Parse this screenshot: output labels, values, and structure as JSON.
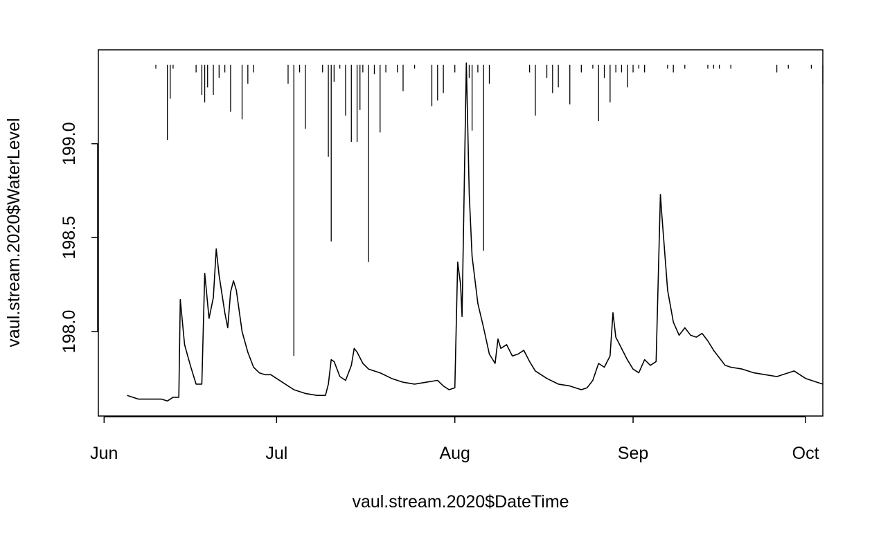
{
  "chart_data": {
    "type": "line",
    "title": "",
    "xlabel": "vaul.stream.2020$DateTime",
    "ylabel": "vaul.stream.2020$WaterLevel",
    "xlim": [
      "2020-05-31",
      "2020-10-04"
    ],
    "ylim": [
      197.55,
      199.5
    ],
    "x_ticks": [
      {
        "date": "2020-06-01",
        "label": "Jun"
      },
      {
        "date": "2020-07-01",
        "label": "Jul"
      },
      {
        "date": "2020-08-01",
        "label": "Aug"
      },
      {
        "date": "2020-09-01",
        "label": "Sep"
      },
      {
        "date": "2020-10-01",
        "label": "Oct"
      }
    ],
    "y_ticks": [
      {
        "value": 198.0,
        "label": "198.0"
      },
      {
        "value": 198.5,
        "label": "198.5"
      },
      {
        "value": 199.0,
        "label": "199.0"
      }
    ],
    "grid": false,
    "legend": "none",
    "line_color": "#000000",
    "series": [
      {
        "points": [
          [
            "2020-06-05",
            197.66
          ],
          [
            "2020-06-07",
            197.64
          ],
          [
            "2020-06-09",
            197.64
          ],
          [
            "2020-06-11",
            197.64
          ],
          [
            "2020-06-12",
            197.63
          ],
          [
            "2020-06-13",
            197.65
          ],
          [
            "2020-06-14",
            197.65
          ],
          [
            "2020-06-14 06:00",
            198.17
          ],
          [
            "2020-06-15",
            197.93
          ],
          [
            "2020-06-16",
            197.82
          ],
          [
            "2020-06-17",
            197.72
          ],
          [
            "2020-06-18",
            197.72
          ],
          [
            "2020-06-18 12:00",
            198.31
          ],
          [
            "2020-06-19 06:00",
            198.07
          ],
          [
            "2020-06-20",
            198.18
          ],
          [
            "2020-06-20 12:00",
            198.44
          ],
          [
            "2020-06-21",
            198.3
          ],
          [
            "2020-06-22",
            198.1
          ],
          [
            "2020-06-22 12:00",
            198.02
          ],
          [
            "2020-06-23",
            198.21
          ],
          [
            "2020-06-23 12:00",
            198.27
          ],
          [
            "2020-06-24",
            198.22
          ],
          [
            "2020-06-25",
            198.0
          ],
          [
            "2020-06-26",
            197.89
          ],
          [
            "2020-06-27",
            197.81
          ],
          [
            "2020-06-28",
            197.78
          ],
          [
            "2020-06-29",
            197.77
          ],
          [
            "2020-06-30",
            197.77
          ],
          [
            "2020-07-02",
            197.73
          ],
          [
            "2020-07-04",
            197.69
          ],
          [
            "2020-07-06",
            197.67
          ],
          [
            "2020-07-08",
            197.66
          ],
          [
            "2020-07-09 12:00",
            197.66
          ],
          [
            "2020-07-10",
            197.72
          ],
          [
            "2020-07-10 12:00",
            197.85
          ],
          [
            "2020-07-11",
            197.84
          ],
          [
            "2020-07-12",
            197.76
          ],
          [
            "2020-07-13",
            197.74
          ],
          [
            "2020-07-14",
            197.82
          ],
          [
            "2020-07-14 12:00",
            197.91
          ],
          [
            "2020-07-15",
            197.89
          ],
          [
            "2020-07-16",
            197.83
          ],
          [
            "2020-07-17",
            197.8
          ],
          [
            "2020-07-19",
            197.78
          ],
          [
            "2020-07-21",
            197.75
          ],
          [
            "2020-07-23",
            197.73
          ],
          [
            "2020-07-25",
            197.72
          ],
          [
            "2020-07-27",
            197.73
          ],
          [
            "2020-07-29",
            197.74
          ],
          [
            "2020-07-30",
            197.71
          ],
          [
            "2020-07-31",
            197.69
          ],
          [
            "2020-08-01",
            197.7
          ],
          [
            "2020-08-01 12:00",
            198.37
          ],
          [
            "2020-08-02",
            198.25
          ],
          [
            "2020-08-02 06:00",
            198.08
          ],
          [
            "2020-08-03",
            199.43
          ],
          [
            "2020-08-03 12:00",
            198.73
          ],
          [
            "2020-08-04",
            198.4
          ],
          [
            "2020-08-05",
            198.15
          ],
          [
            "2020-08-06",
            198.02
          ],
          [
            "2020-08-07",
            197.88
          ],
          [
            "2020-08-08",
            197.83
          ],
          [
            "2020-08-08 12:00",
            197.96
          ],
          [
            "2020-08-09",
            197.91
          ],
          [
            "2020-08-10",
            197.93
          ],
          [
            "2020-08-11",
            197.87
          ],
          [
            "2020-08-12",
            197.88
          ],
          [
            "2020-08-13",
            197.9
          ],
          [
            "2020-08-14",
            197.84
          ],
          [
            "2020-08-15",
            197.79
          ],
          [
            "2020-08-17",
            197.75
          ],
          [
            "2020-08-19",
            197.72
          ],
          [
            "2020-08-21",
            197.71
          ],
          [
            "2020-08-23",
            197.69
          ],
          [
            "2020-08-24",
            197.7
          ],
          [
            "2020-08-25",
            197.74
          ],
          [
            "2020-08-26",
            197.83
          ],
          [
            "2020-08-27",
            197.81
          ],
          [
            "2020-08-28",
            197.87
          ],
          [
            "2020-08-28 12:00",
            198.1
          ],
          [
            "2020-08-29",
            197.97
          ],
          [
            "2020-08-30",
            197.91
          ],
          [
            "2020-08-31",
            197.85
          ],
          [
            "2020-09-01",
            197.8
          ],
          [
            "2020-09-02",
            197.78
          ],
          [
            "2020-09-03",
            197.85
          ],
          [
            "2020-09-04",
            197.82
          ],
          [
            "2020-09-05",
            197.84
          ],
          [
            "2020-09-05 18:00",
            198.73
          ],
          [
            "2020-09-06",
            198.62
          ],
          [
            "2020-09-07",
            198.22
          ],
          [
            "2020-09-08",
            198.05
          ],
          [
            "2020-09-09",
            197.98
          ],
          [
            "2020-09-10",
            198.02
          ],
          [
            "2020-09-11",
            197.98
          ],
          [
            "2020-09-12",
            197.97
          ],
          [
            "2020-09-13",
            197.99
          ],
          [
            "2020-09-14",
            197.95
          ],
          [
            "2020-09-15",
            197.9
          ],
          [
            "2020-09-16",
            197.86
          ],
          [
            "2020-09-17",
            197.82
          ],
          [
            "2020-09-18",
            197.81
          ],
          [
            "2020-09-20",
            197.8
          ],
          [
            "2020-09-22",
            197.78
          ],
          [
            "2020-09-24",
            197.77
          ],
          [
            "2020-09-26",
            197.76
          ],
          [
            "2020-09-28",
            197.78
          ],
          [
            "2020-09-29",
            197.79
          ],
          [
            "2020-09-30",
            197.77
          ],
          [
            "2020-10-01",
            197.75
          ],
          [
            "2020-10-02",
            197.74
          ],
          [
            "2020-10-03",
            197.73
          ],
          [
            "2020-10-04",
            197.72
          ]
        ]
      }
    ],
    "spikes": [
      {
        "date": "2020-06-10",
        "min": 199.4
      },
      {
        "date": "2020-06-12",
        "min": 199.02
      },
      {
        "date": "2020-06-12 12:00",
        "min": 199.24
      },
      {
        "date": "2020-06-13",
        "min": 199.4
      },
      {
        "date": "2020-06-17",
        "min": 199.38
      },
      {
        "date": "2020-06-18",
        "min": 199.26
      },
      {
        "date": "2020-06-18 12:00",
        "min": 199.22
      },
      {
        "date": "2020-06-19",
        "min": 199.3
      },
      {
        "date": "2020-06-20",
        "min": 199.26
      },
      {
        "date": "2020-06-21",
        "min": 199.35
      },
      {
        "date": "2020-06-22",
        "min": 199.38
      },
      {
        "date": "2020-06-23",
        "min": 199.17
      },
      {
        "date": "2020-06-25",
        "min": 199.13
      },
      {
        "date": "2020-06-26",
        "min": 199.32
      },
      {
        "date": "2020-06-27",
        "min": 199.38
      },
      {
        "date": "2020-07-03",
        "min": 199.32
      },
      {
        "date": "2020-07-04",
        "min": 197.87
      },
      {
        "date": "2020-07-05",
        "min": 199.38
      },
      {
        "date": "2020-07-06",
        "min": 199.08
      },
      {
        "date": "2020-07-09",
        "min": 199.38
      },
      {
        "date": "2020-07-10",
        "min": 198.93
      },
      {
        "date": "2020-07-10 12:00",
        "min": 198.48
      },
      {
        "date": "2020-07-11",
        "min": 199.33
      },
      {
        "date": "2020-07-12",
        "min": 199.4
      },
      {
        "date": "2020-07-13",
        "min": 199.15
      },
      {
        "date": "2020-07-14",
        "min": 199.01
      },
      {
        "date": "2020-07-15",
        "min": 199.01
      },
      {
        "date": "2020-07-15 12:00",
        "min": 199.18
      },
      {
        "date": "2020-07-16",
        "min": 199.38
      },
      {
        "date": "2020-07-17",
        "min": 198.37
      },
      {
        "date": "2020-07-18",
        "min": 199.37
      },
      {
        "date": "2020-07-19",
        "min": 199.06
      },
      {
        "date": "2020-07-20",
        "min": 199.38
      },
      {
        "date": "2020-07-22",
        "min": 199.38
      },
      {
        "date": "2020-07-23",
        "min": 199.28
      },
      {
        "date": "2020-07-25",
        "min": 199.4
      },
      {
        "date": "2020-07-28",
        "min": 199.2
      },
      {
        "date": "2020-07-29",
        "min": 199.23
      },
      {
        "date": "2020-07-30",
        "min": 199.27
      },
      {
        "date": "2020-08-01",
        "min": 199.38
      },
      {
        "date": "2020-08-03",
        "min": 199.4
      },
      {
        "date": "2020-08-03 12:00",
        "min": 199.35
      },
      {
        "date": "2020-08-04",
        "min": 199.07
      },
      {
        "date": "2020-08-05",
        "min": 199.38
      },
      {
        "date": "2020-08-06",
        "min": 198.43
      },
      {
        "date": "2020-08-07",
        "min": 199.32
      },
      {
        "date": "2020-08-14",
        "min": 199.38
      },
      {
        "date": "2020-08-15",
        "min": 199.15
      },
      {
        "date": "2020-08-17",
        "min": 199.35
      },
      {
        "date": "2020-08-18",
        "min": 199.27
      },
      {
        "date": "2020-08-19",
        "min": 199.3
      },
      {
        "date": "2020-08-21",
        "min": 199.21
      },
      {
        "date": "2020-08-23",
        "min": 199.38
      },
      {
        "date": "2020-08-25",
        "min": 199.4
      },
      {
        "date": "2020-08-26",
        "min": 199.12
      },
      {
        "date": "2020-08-27",
        "min": 199.35
      },
      {
        "date": "2020-08-28",
        "min": 199.22
      },
      {
        "date": "2020-08-29",
        "min": 199.38
      },
      {
        "date": "2020-08-30",
        "min": 199.38
      },
      {
        "date": "2020-08-31",
        "min": 199.3
      },
      {
        "date": "2020-09-01",
        "min": 199.38
      },
      {
        "date": "2020-09-02",
        "min": 199.4
      },
      {
        "date": "2020-09-03",
        "min": 199.38
      },
      {
        "date": "2020-09-07",
        "min": 199.4
      },
      {
        "date": "2020-09-08",
        "min": 199.38
      },
      {
        "date": "2020-09-10",
        "min": 199.4
      },
      {
        "date": "2020-09-14",
        "min": 199.4
      },
      {
        "date": "2020-09-15",
        "min": 199.4
      },
      {
        "date": "2020-09-16",
        "min": 199.4
      },
      {
        "date": "2020-09-18",
        "min": 199.4
      },
      {
        "date": "2020-09-26",
        "min": 199.38
      },
      {
        "date": "2020-09-28",
        "min": 199.4
      },
      {
        "date": "2020-10-02",
        "min": 199.4
      },
      {
        "date": "2020-10-04",
        "min": 199.32
      }
    ]
  }
}
